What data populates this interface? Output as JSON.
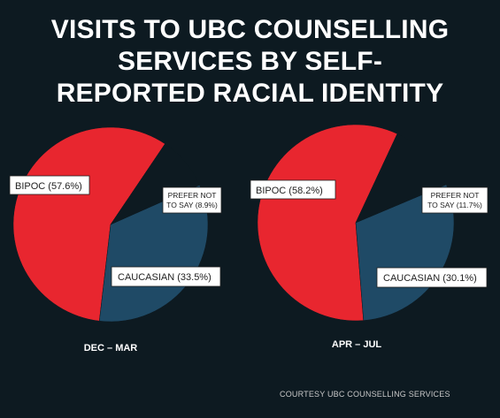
{
  "header": {
    "title_lines": [
      "VISITS TO UBC COUNSELLING",
      "SERVICES BY SELF-",
      "REPORTED RACIAL IDENTITY"
    ]
  },
  "credit": "COURTESY UBC COUNSELLING SERVICES",
  "colors": {
    "background": "#0d1a21",
    "bipoc": "#e8262f",
    "caucasian": "#1f4a66",
    "prefer_not_to_say": "#0d1a21"
  },
  "chart_data": [
    {
      "type": "pie",
      "xlabel": "DEC – MAR",
      "slices": [
        {
          "label": "BIPOC (57.6%)",
          "category": "BIPOC",
          "value": 57.6,
          "color": "#e8262f"
        },
        {
          "label": "CAUCASIAN (33.5%)",
          "category": "CAUCASIAN",
          "value": 33.5,
          "color": "#1f4a66"
        },
        {
          "label_lines": [
            "PREFER NOT",
            "TO SAY (8.9%)"
          ],
          "category": "PREFER NOT TO SAY",
          "value": 8.9,
          "color": "#0d1a21"
        }
      ]
    },
    {
      "type": "pie",
      "xlabel": "APR – JUL",
      "slices": [
        {
          "label": "BIPOC (58.2%)",
          "category": "BIPOC",
          "value": 58.2,
          "color": "#e8262f"
        },
        {
          "label": "CAUCASIAN (30.1%)",
          "category": "CAUCASIAN",
          "value": 30.1,
          "color": "#1f4a66"
        },
        {
          "label_lines": [
            "PREFER NOT",
            "TO SAY (11.7%)"
          ],
          "category": "PREFER NOT TO SAY",
          "value": 11.7,
          "color": "#0d1a21"
        }
      ]
    }
  ]
}
